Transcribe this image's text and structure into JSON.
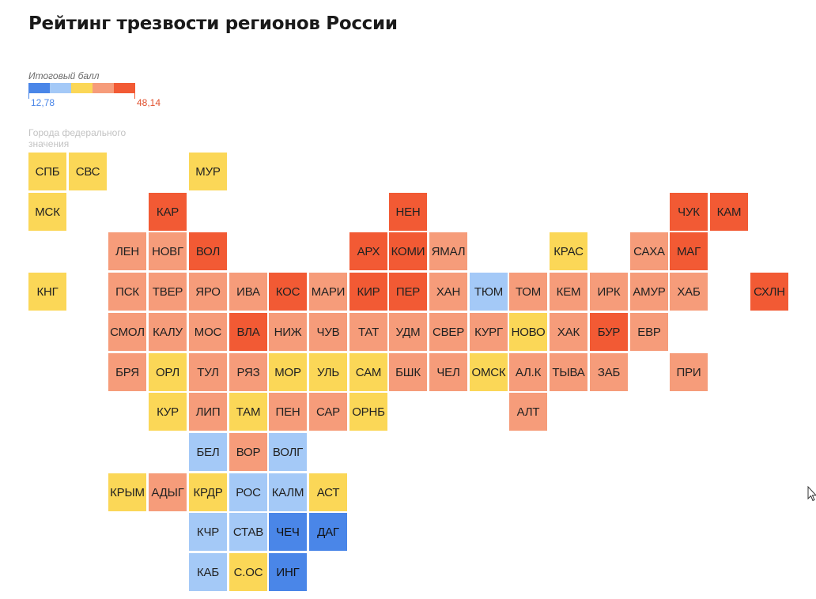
{
  "title": "Рейтинг трезвости регионов России",
  "legend": {
    "label": "Итоговый балл",
    "min": "12,78",
    "max": "48,14",
    "colors": [
      "#4a86e8",
      "#a4c9f7",
      "#fbd757",
      "#f69c7a",
      "#f25a34"
    ]
  },
  "federal_note": "Города федерального значения",
  "map_data": {
    "color_scale": [
      "#4a86e8",
      "#a4c9f7",
      "#fbd757",
      "#f69c7a",
      "#f25a34"
    ],
    "regions": [
      {
        "label": "СПБ",
        "col": 0,
        "row": 0,
        "level": 2
      },
      {
        "label": "СВС",
        "col": 1,
        "row": 0,
        "level": 2
      },
      {
        "label": "МУР",
        "col": 4,
        "row": 0,
        "level": 2
      },
      {
        "label": "МСК",
        "col": 0,
        "row": 1,
        "level": 2
      },
      {
        "label": "КАР",
        "col": 3,
        "row": 1,
        "level": 4
      },
      {
        "label": "НЕН",
        "col": 9,
        "row": 1,
        "level": 4
      },
      {
        "label": "ЧУК",
        "col": 16,
        "row": 1,
        "level": 4
      },
      {
        "label": "КАМ",
        "col": 17,
        "row": 1,
        "level": 4
      },
      {
        "label": "ЛЕН",
        "col": 2,
        "row": 2,
        "level": 3
      },
      {
        "label": "НОВГ",
        "col": 3,
        "row": 2,
        "level": 3
      },
      {
        "label": "ВОЛ",
        "col": 4,
        "row": 2,
        "level": 4
      },
      {
        "label": "АРХ",
        "col": 8,
        "row": 2,
        "level": 4
      },
      {
        "label": "КОМИ",
        "col": 9,
        "row": 2,
        "level": 4
      },
      {
        "label": "ЯМАЛ",
        "col": 10,
        "row": 2,
        "level": 3
      },
      {
        "label": "КРАС",
        "col": 13,
        "row": 2,
        "level": 2
      },
      {
        "label": "САХА",
        "col": 15,
        "row": 2,
        "level": 3
      },
      {
        "label": "МАГ",
        "col": 16,
        "row": 2,
        "level": 4
      },
      {
        "label": "КНГ",
        "col": 0,
        "row": 3,
        "level": 2
      },
      {
        "label": "ПСК",
        "col": 2,
        "row": 3,
        "level": 3
      },
      {
        "label": "ТВЕР",
        "col": 3,
        "row": 3,
        "level": 3
      },
      {
        "label": "ЯРО",
        "col": 4,
        "row": 3,
        "level": 3
      },
      {
        "label": "ИВА",
        "col": 5,
        "row": 3,
        "level": 3
      },
      {
        "label": "КОС",
        "col": 6,
        "row": 3,
        "level": 4
      },
      {
        "label": "МАРИ",
        "col": 7,
        "row": 3,
        "level": 3
      },
      {
        "label": "КИР",
        "col": 8,
        "row": 3,
        "level": 4
      },
      {
        "label": "ПЕР",
        "col": 9,
        "row": 3,
        "level": 4
      },
      {
        "label": "ХАН",
        "col": 10,
        "row": 3,
        "level": 3
      },
      {
        "label": "ТЮМ",
        "col": 11,
        "row": 3,
        "level": 1
      },
      {
        "label": "ТОМ",
        "col": 12,
        "row": 3,
        "level": 3
      },
      {
        "label": "КЕМ",
        "col": 13,
        "row": 3,
        "level": 3
      },
      {
        "label": "ИРК",
        "col": 14,
        "row": 3,
        "level": 3
      },
      {
        "label": "АМУР",
        "col": 15,
        "row": 3,
        "level": 3
      },
      {
        "label": "ХАБ",
        "col": 16,
        "row": 3,
        "level": 3
      },
      {
        "label": "СХЛН",
        "col": 18,
        "row": 3,
        "level": 4
      },
      {
        "label": "СМОЛ",
        "col": 2,
        "row": 4,
        "level": 3
      },
      {
        "label": "КАЛУ",
        "col": 3,
        "row": 4,
        "level": 3
      },
      {
        "label": "МОС",
        "col": 4,
        "row": 4,
        "level": 3
      },
      {
        "label": "ВЛА",
        "col": 5,
        "row": 4,
        "level": 4
      },
      {
        "label": "НИЖ",
        "col": 6,
        "row": 4,
        "level": 3
      },
      {
        "label": "ЧУВ",
        "col": 7,
        "row": 4,
        "level": 3
      },
      {
        "label": "ТАТ",
        "col": 8,
        "row": 4,
        "level": 3
      },
      {
        "label": "УДМ",
        "col": 9,
        "row": 4,
        "level": 3
      },
      {
        "label": "СВЕР",
        "col": 10,
        "row": 4,
        "level": 3
      },
      {
        "label": "КУРГ",
        "col": 11,
        "row": 4,
        "level": 3
      },
      {
        "label": "НОВО",
        "col": 12,
        "row": 4,
        "level": 2
      },
      {
        "label": "ХАК",
        "col": 13,
        "row": 4,
        "level": 3
      },
      {
        "label": "БУР",
        "col": 14,
        "row": 4,
        "level": 4
      },
      {
        "label": "ЕВР",
        "col": 15,
        "row": 4,
        "level": 3
      },
      {
        "label": "БРЯ",
        "col": 2,
        "row": 5,
        "level": 3
      },
      {
        "label": "ОРЛ",
        "col": 3,
        "row": 5,
        "level": 2
      },
      {
        "label": "ТУЛ",
        "col": 4,
        "row": 5,
        "level": 3
      },
      {
        "label": "РЯЗ",
        "col": 5,
        "row": 5,
        "level": 3
      },
      {
        "label": "МОР",
        "col": 6,
        "row": 5,
        "level": 2
      },
      {
        "label": "УЛЬ",
        "col": 7,
        "row": 5,
        "level": 2
      },
      {
        "label": "САМ",
        "col": 8,
        "row": 5,
        "level": 2
      },
      {
        "label": "БШК",
        "col": 9,
        "row": 5,
        "level": 3
      },
      {
        "label": "ЧЕЛ",
        "col": 10,
        "row": 5,
        "level": 3
      },
      {
        "label": "ОМСК",
        "col": 11,
        "row": 5,
        "level": 2
      },
      {
        "label": "АЛ.К",
        "col": 12,
        "row": 5,
        "level": 3
      },
      {
        "label": "ТЫВА",
        "col": 13,
        "row": 5,
        "level": 3
      },
      {
        "label": "ЗАБ",
        "col": 14,
        "row": 5,
        "level": 3
      },
      {
        "label": "ПРИ",
        "col": 16,
        "row": 5,
        "level": 3
      },
      {
        "label": "КУР",
        "col": 3,
        "row": 6,
        "level": 2
      },
      {
        "label": "ЛИП",
        "col": 4,
        "row": 6,
        "level": 3
      },
      {
        "label": "ТАМ",
        "col": 5,
        "row": 6,
        "level": 2
      },
      {
        "label": "ПЕН",
        "col": 6,
        "row": 6,
        "level": 3
      },
      {
        "label": "САР",
        "col": 7,
        "row": 6,
        "level": 3
      },
      {
        "label": "ОРНБ",
        "col": 8,
        "row": 6,
        "level": 2
      },
      {
        "label": "АЛТ",
        "col": 12,
        "row": 6,
        "level": 3
      },
      {
        "label": "БЕЛ",
        "col": 4,
        "row": 7,
        "level": 1
      },
      {
        "label": "ВОР",
        "col": 5,
        "row": 7,
        "level": 3
      },
      {
        "label": "ВОЛГ",
        "col": 6,
        "row": 7,
        "level": 1
      },
      {
        "label": "КРЫМ",
        "col": 2,
        "row": 8,
        "level": 2
      },
      {
        "label": "АДЫГ",
        "col": 3,
        "row": 8,
        "level": 3
      },
      {
        "label": "КРДР",
        "col": 4,
        "row": 8,
        "level": 2
      },
      {
        "label": "РОС",
        "col": 5,
        "row": 8,
        "level": 1
      },
      {
        "label": "КАЛМ",
        "col": 6,
        "row": 8,
        "level": 1
      },
      {
        "label": "АСТ",
        "col": 7,
        "row": 8,
        "level": 2
      },
      {
        "label": "КЧР",
        "col": 4,
        "row": 9,
        "level": 1
      },
      {
        "label": "СТАВ",
        "col": 5,
        "row": 9,
        "level": 1
      },
      {
        "label": "ЧЕЧ",
        "col": 6,
        "row": 9,
        "level": 0
      },
      {
        "label": "ДАГ",
        "col": 7,
        "row": 9,
        "level": 0
      },
      {
        "label": "КАБ",
        "col": 4,
        "row": 10,
        "level": 1
      },
      {
        "label": "С.ОС",
        "col": 5,
        "row": 10,
        "level": 2
      },
      {
        "label": "ИНГ",
        "col": 6,
        "row": 10,
        "level": 0
      }
    ]
  }
}
